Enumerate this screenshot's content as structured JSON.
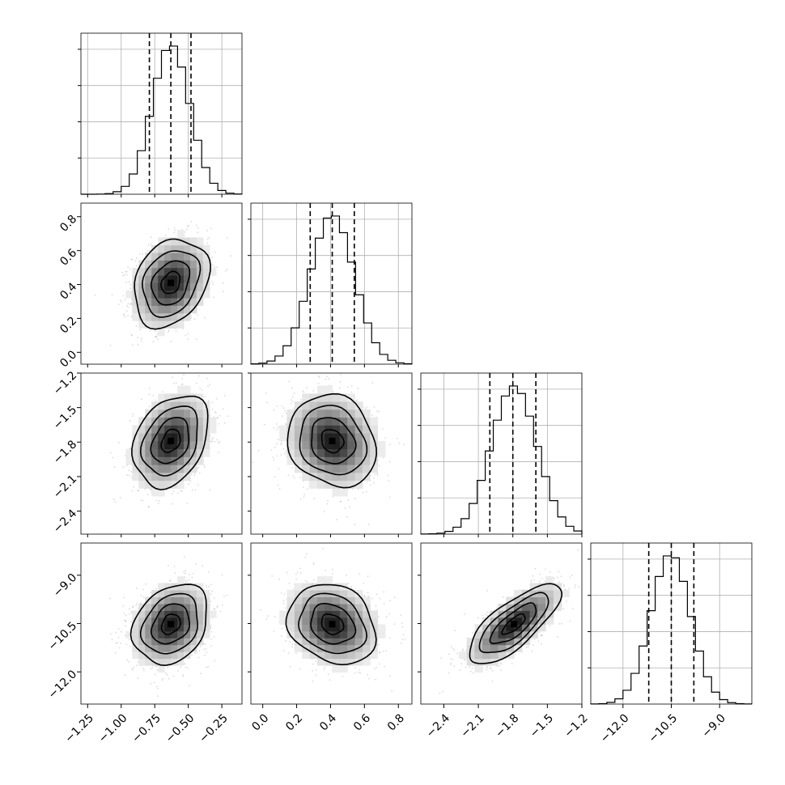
{
  "chart_data": {
    "type": "corner",
    "grid": true,
    "params": [
      {
        "mean": -0.63,
        "std": 0.14,
        "range": [
          -1.3,
          -0.1
        ],
        "ticks": [
          -1.25,
          -1.0,
          -0.75,
          -0.5,
          -0.25
        ],
        "tick_labels": [
          "−1.25",
          "−1.00",
          "−0.75",
          "−0.50",
          "−0.25"
        ],
        "quantiles": [
          -0.79,
          -0.63,
          -0.48
        ]
      },
      {
        "mean": 0.41,
        "std": 0.13,
        "range": [
          -0.07,
          0.88
        ],
        "ticks": [
          0.0,
          0.2,
          0.4,
          0.6,
          0.8
        ],
        "tick_labels": [
          "0.0",
          "0.2",
          "0.4",
          "0.6",
          "0.8"
        ],
        "quantiles": [
          0.28,
          0.41,
          0.54
        ]
      },
      {
        "mean": -1.79,
        "std": 0.2,
        "range": [
          -2.6,
          -1.2
        ],
        "ticks": [
          -2.4,
          -2.1,
          -1.8,
          -1.5,
          -1.2
        ],
        "tick_labels": [
          "−2.4",
          "−2.1",
          "−1.8",
          "−1.5",
          "−1.2"
        ],
        "quantiles": [
          -2.0,
          -1.8,
          -1.6
        ]
      },
      {
        "mean": -10.52,
        "std": 0.62,
        "range": [
          -13.0,
          -8.0
        ],
        "ticks": [
          -12.0,
          -10.5,
          -9.0
        ],
        "tick_labels": [
          "−12.0",
          "−10.5",
          "−9.0"
        ],
        "quantiles": [
          -11.2,
          -10.5,
          -9.8
        ]
      }
    ],
    "correlations": [
      [
        1.0,
        0.25,
        0.3,
        0.25
      ],
      [
        0.25,
        1.0,
        -0.15,
        -0.2
      ],
      [
        0.3,
        -0.15,
        1.0,
        0.75
      ],
      [
        0.25,
        -0.2,
        0.75,
        1.0
      ]
    ],
    "hist_bins": 20,
    "contour_levels": [
      0.5,
      1.0,
      1.5,
      2.0
    ]
  }
}
